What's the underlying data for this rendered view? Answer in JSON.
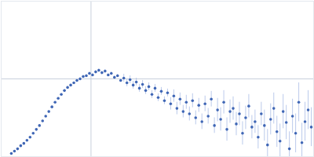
{
  "chart_data": {
    "type": "scatter",
    "color": "#3f66b5",
    "grid": true,
    "tick_labels": false,
    "xlim": [
      0,
      4
    ],
    "ylim": [
      0,
      2
    ],
    "xticks": [
      1.15
    ],
    "yticks": [
      1
    ],
    "x": [
      0.13,
      0.17,
      0.21,
      0.25,
      0.29,
      0.33,
      0.37,
      0.41,
      0.45,
      0.49,
      0.53,
      0.57,
      0.61,
      0.65,
      0.69,
      0.73,
      0.77,
      0.81,
      0.85,
      0.89,
      0.93,
      0.97,
      1.01,
      1.05,
      1.09,
      1.13,
      1.17,
      1.21,
      1.25,
      1.29,
      1.33,
      1.37,
      1.41,
      1.45,
      1.49,
      1.53,
      1.57,
      1.61,
      1.65,
      1.69,
      1.73,
      1.77,
      1.81,
      1.85,
      1.89,
      1.93,
      1.97,
      2.01,
      2.05,
      2.09,
      2.13,
      2.17,
      2.21,
      2.25,
      2.29,
      2.33,
      2.37,
      2.41,
      2.45,
      2.49,
      2.53,
      2.57,
      2.61,
      2.65,
      2.69,
      2.73,
      2.77,
      2.81,
      2.85,
      2.89,
      2.93,
      2.97,
      3.01,
      3.05,
      3.09,
      3.13,
      3.17,
      3.21,
      3.25,
      3.29,
      3.33,
      3.37,
      3.41,
      3.45,
      3.49,
      3.53,
      3.57,
      3.61,
      3.65,
      3.69,
      3.73,
      3.77,
      3.81,
      3.85,
      3.89,
      3.93,
      3.97
    ],
    "values": [
      0.04,
      0.07,
      0.1,
      0.14,
      0.17,
      0.21,
      0.25,
      0.3,
      0.35,
      0.4,
      0.46,
      0.52,
      0.58,
      0.64,
      0.7,
      0.75,
      0.8,
      0.85,
      0.89,
      0.92,
      0.95,
      0.98,
      1.0,
      1.03,
      1.04,
      1.07,
      1.05,
      1.09,
      1.11,
      1.08,
      1.1,
      1.05,
      1.07,
      1.02,
      1.04,
      0.98,
      1.01,
      0.95,
      0.99,
      0.92,
      0.96,
      0.88,
      0.93,
      0.85,
      0.9,
      0.8,
      0.88,
      0.76,
      0.84,
      0.72,
      0.82,
      0.68,
      0.78,
      0.62,
      0.74,
      0.58,
      0.7,
      0.55,
      0.72,
      0.5,
      0.66,
      0.45,
      0.68,
      0.52,
      0.74,
      0.4,
      0.6,
      0.48,
      0.7,
      0.35,
      0.58,
      0.62,
      0.42,
      0.55,
      0.3,
      0.5,
      0.65,
      0.38,
      0.45,
      0.25,
      0.55,
      0.4,
      0.15,
      0.48,
      0.62,
      0.32,
      0.2,
      0.58,
      0.44,
      0.1,
      0.52,
      0.3,
      0.7,
      0.18,
      0.45,
      0.6,
      0.38
    ],
    "errors": [
      0.01,
      0.01,
      0.01,
      0.01,
      0.01,
      0.01,
      0.01,
      0.01,
      0.01,
      0.01,
      0.01,
      0.01,
      0.01,
      0.01,
      0.01,
      0.01,
      0.01,
      0.01,
      0.01,
      0.01,
      0.01,
      0.02,
      0.02,
      0.02,
      0.02,
      0.02,
      0.02,
      0.02,
      0.02,
      0.02,
      0.02,
      0.02,
      0.02,
      0.02,
      0.02,
      0.02,
      0.05,
      0.05,
      0.05,
      0.05,
      0.05,
      0.05,
      0.05,
      0.05,
      0.05,
      0.05,
      0.05,
      0.05,
      0.05,
      0.05,
      0.05,
      0.08,
      0.08,
      0.08,
      0.08,
      0.08,
      0.09,
      0.09,
      0.09,
      0.09,
      0.09,
      0.1,
      0.1,
      0.1,
      0.1,
      0.1,
      0.15,
      0.15,
      0.15,
      0.15,
      0.15,
      0.15,
      0.15,
      0.15,
      0.15,
      0.15,
      0.15,
      0.15,
      0.15,
      0.15,
      0.15,
      0.2,
      0.2,
      0.2,
      0.2,
      0.2,
      0.22,
      0.22,
      0.22,
      0.22,
      0.22,
      0.25,
      0.25,
      0.25,
      0.25,
      0.25,
      0.25
    ]
  }
}
